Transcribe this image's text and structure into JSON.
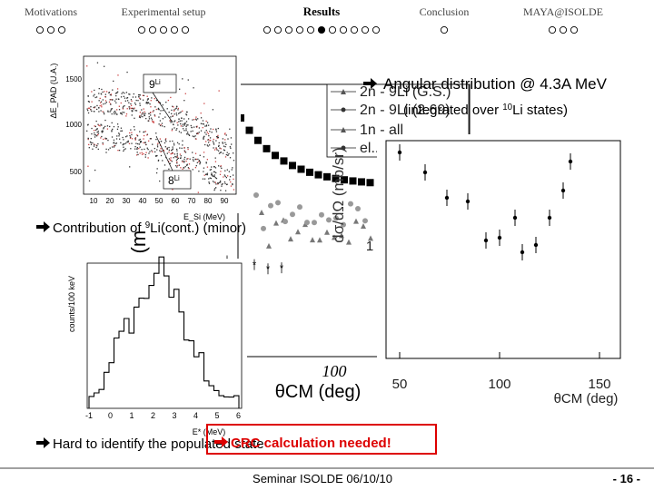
{
  "nav": {
    "sections": [
      "Motivations",
      "Experimental setup",
      "Results",
      "Conclusion",
      "MAYA@ISOLDE"
    ],
    "dots": [
      3,
      5,
      11,
      1,
      3
    ]
  },
  "bullets": {
    "angular": "Angular distribution @ 4.3A MeV",
    "integrated": [
      "(integrated over ",
      "10",
      "Li states)"
    ],
    "contribution": [
      "Contribution of ",
      "9",
      "Li(cont.) (minor)"
    ],
    "identify": "Hard to identify the populated state",
    "crc": "CRC calculation needed!"
  },
  "pid_plot": {
    "ylabel": "ΔE_PAD (U.A.)",
    "yticks": [
      "500",
      "1000",
      "1500"
    ],
    "xticks": [
      "10",
      "20",
      "30",
      "40",
      "50",
      "60",
      "70",
      "80",
      "90"
    ],
    "xlabel": "E_Si (MeV)",
    "tag_9li": [
      "9",
      "Li"
    ],
    "tag_8li": [
      "8",
      "Li"
    ]
  },
  "back_plot": {
    "legend": [
      "2n - 9Li (G.S.)",
      "2n - 9Li (2.69)",
      "1n - all",
      "el..."
    ],
    "ylabel": "dσ/dΩ (m",
    "xticks": [
      "0",
      "100"
    ],
    "xlabel": "θCM (deg)",
    "ylabel2": "dσ/dΩ (mb/sr)"
  },
  "front_plot": {
    "xticks": [
      "50",
      "100",
      "150"
    ],
    "xlabel": "θCM (deg)",
    "ytick": "1"
  },
  "histogram": {
    "ylabel": "counts/100 keV",
    "xticks": [
      "-1",
      "0",
      "1",
      "2",
      "3",
      "4",
      "5",
      "6"
    ],
    "xlabel": "E* (MeV)"
  },
  "footer": {
    "center": "Seminar ISOLDE 06/10/10",
    "page": "- 16 -"
  }
}
